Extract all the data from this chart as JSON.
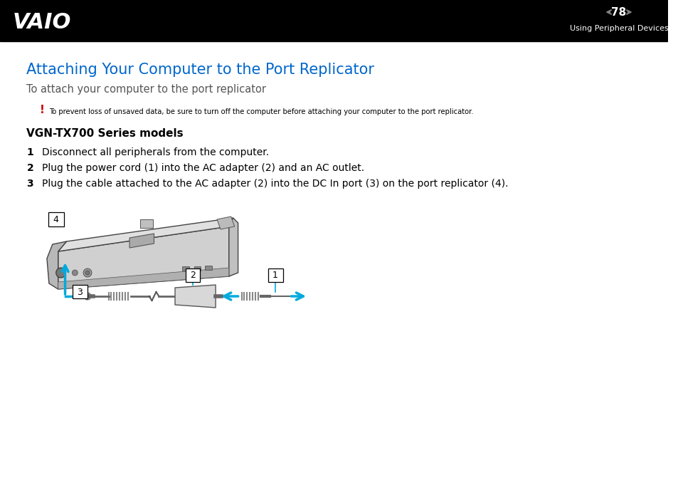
{
  "page_num": "78",
  "header_text": "Using Peripheral Devices",
  "header_bg": "#000000",
  "header_fg": "#ffffff",
  "title": "Attaching Your Computer to the Port Replicator",
  "title_color": "#0066cc",
  "subtitle": "To attach your computer to the port replicator",
  "subtitle_color": "#555555",
  "warning_symbol": "!",
  "warning_color": "#cc0000",
  "warning_text": "To prevent loss of unsaved data, be sure to turn off the computer before attaching your computer to the port replicator.",
  "section_title": "VGN-TX700 Series models",
  "steps": [
    "Disconnect all peripherals from the computer.",
    "Plug the power cord (1) into the AC adapter (2) and an AC outlet.",
    "Plug the cable attached to the AC adapter (2) into the DC In port (3) on the port replicator (4)."
  ],
  "bg_color": "#ffffff",
  "body_text_color": "#000000",
  "arrow_color": "#00aadd",
  "arrow_color_line": "#0099cc"
}
